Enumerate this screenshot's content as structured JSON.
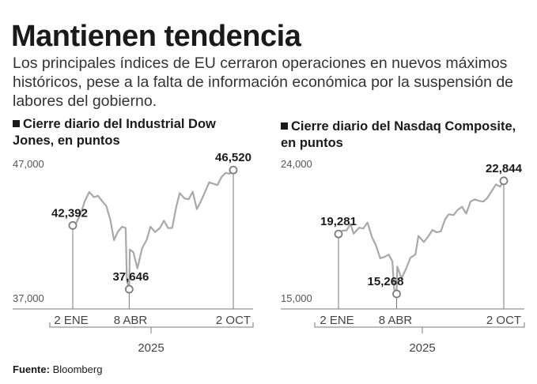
{
  "header": {
    "title": "Mantienen tendencia",
    "subtitle": "Los principales índices de EU cerraron operaciones en nuevos máximos históricos, pese a la falta de información económica por la suspensión de labores del gobierno."
  },
  "footer": {
    "source_label": "Fuente:",
    "source_value": "Bloomberg"
  },
  "colors": {
    "line": "#a8a8a8",
    "text": "#1a1a1a",
    "axis": "#7a7a7a"
  },
  "chart_data": [
    {
      "type": "line",
      "title": "Cierre diario del Industrial Dow Jones, en puntos",
      "ylim": [
        37000,
        47000
      ],
      "y_ticks": [
        "47,000",
        "37,000"
      ],
      "x_ticks": [
        "2 ENE",
        "8 ABR",
        "2 OCT"
      ],
      "x_group_label": "2025",
      "x_range": [
        "2025-01-02",
        "2025-10-02"
      ],
      "annotations": [
        {
          "date": "2025-01-02",
          "value": 42392,
          "label": "42,392"
        },
        {
          "date": "2025-04-08",
          "value": 37646,
          "label": "37,646"
        },
        {
          "date": "2025-10-02",
          "value": 46520,
          "label": "46,520"
        }
      ],
      "series": [
        {
          "x": [
            "2025-01-02",
            "2025-01-08",
            "2025-01-15",
            "2025-01-22",
            "2025-01-30",
            "2025-02-07",
            "2025-02-14",
            "2025-02-21",
            "2025-02-28",
            "2025-03-07",
            "2025-03-13",
            "2025-03-20",
            "2025-03-27",
            "2025-04-02",
            "2025-04-04",
            "2025-04-08",
            "2025-04-09",
            "2025-04-15",
            "2025-04-22",
            "2025-04-30",
            "2025-05-08",
            "2025-05-14",
            "2025-05-22",
            "2025-05-30",
            "2025-06-06",
            "2025-06-13",
            "2025-06-20",
            "2025-06-27",
            "2025-07-03",
            "2025-07-11",
            "2025-07-18",
            "2025-07-25",
            "2025-08-01",
            "2025-08-08",
            "2025-08-15",
            "2025-08-22",
            "2025-08-29",
            "2025-09-05",
            "2025-09-12",
            "2025-09-19",
            "2025-09-26",
            "2025-10-02"
          ],
          "values": [
            42392,
            42600,
            43200,
            44150,
            44880,
            44500,
            44600,
            44200,
            43840,
            42800,
            41300,
            41950,
            42300,
            42200,
            38300,
            37646,
            40600,
            40400,
            39200,
            40700,
            41350,
            42300,
            41900,
            42200,
            42750,
            42200,
            42200,
            43800,
            44800,
            44400,
            44350,
            44900,
            43600,
            44200,
            44900,
            45600,
            45500,
            45400,
            46000,
            46300,
            46250,
            46520
          ]
        }
      ]
    },
    {
      "type": "line",
      "title": "Cierre diario del Nasdaq Composite, en puntos",
      "ylim": [
        15000,
        24000
      ],
      "y_ticks": [
        "24,000",
        "15,000"
      ],
      "x_ticks": [
        "2 ENE",
        "8 ABR",
        "2 OCT"
      ],
      "x_group_label": "2025",
      "x_range": [
        "2025-01-02",
        "2025-10-02"
      ],
      "annotations": [
        {
          "date": "2025-01-02",
          "value": 19281,
          "label": "19,281"
        },
        {
          "date": "2025-04-08",
          "value": 15268,
          "label": "15,268"
        },
        {
          "date": "2025-10-02",
          "value": 22844,
          "label": "22,844"
        }
      ],
      "series": [
        {
          "x": [
            "2025-01-02",
            "2025-01-08",
            "2025-01-15",
            "2025-01-22",
            "2025-01-27",
            "2025-02-05",
            "2025-02-12",
            "2025-02-19",
            "2025-02-26",
            "2025-03-05",
            "2025-03-12",
            "2025-03-19",
            "2025-03-26",
            "2025-04-01",
            "2025-04-04",
            "2025-04-08",
            "2025-04-09",
            "2025-04-16",
            "2025-04-23",
            "2025-05-01",
            "2025-05-09",
            "2025-05-14",
            "2025-05-23",
            "2025-05-30",
            "2025-06-06",
            "2025-06-13",
            "2025-06-20",
            "2025-06-27",
            "2025-07-03",
            "2025-07-11",
            "2025-07-18",
            "2025-07-25",
            "2025-08-01",
            "2025-08-08",
            "2025-08-15",
            "2025-08-22",
            "2025-08-29",
            "2025-09-05",
            "2025-09-12",
            "2025-09-19",
            "2025-09-26",
            "2025-10-02"
          ],
          "values": [
            19281,
            19500,
            19520,
            19950,
            19300,
            19700,
            19650,
            20050,
            19100,
            18500,
            17650,
            17750,
            17900,
            17450,
            15600,
            15268,
            17100,
            16300,
            16900,
            17700,
            17900,
            19150,
            18750,
            19100,
            19550,
            19400,
            19450,
            20250,
            20600,
            20550,
            20900,
            21100,
            20650,
            21450,
            21600,
            21500,
            21450,
            21700,
            22150,
            22600,
            22450,
            22844
          ]
        }
      ]
    }
  ]
}
